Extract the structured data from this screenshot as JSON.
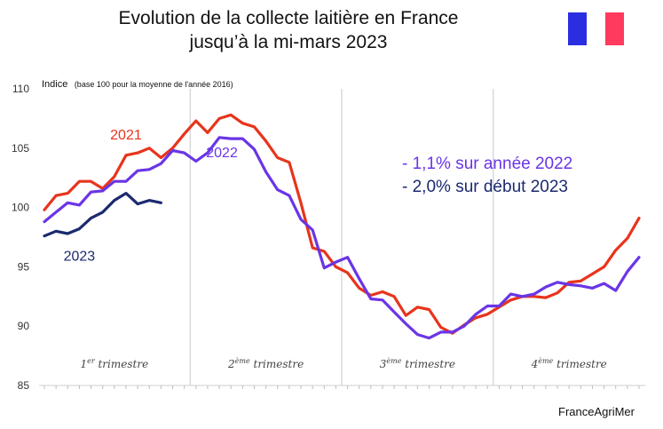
{
  "title_line1": "Evolution de la collecte laitière en France",
  "title_line2": "jusqu’à la mi-mars 2023",
  "source": "FranceAgriMer",
  "flag_colors": [
    "#2b2ee0",
    "#ffffff",
    "#ff3a5e"
  ],
  "chart_data": {
    "type": "line",
    "ylabel": "Indice",
    "ylabel_note": "(base 100 pour la moyenne de l'année 2016)",
    "ylim": [
      85,
      110
    ],
    "yticks": [
      85,
      90,
      95,
      100,
      105,
      110
    ],
    "x_unit": "week",
    "xlim": [
      1,
      52
    ],
    "quarters": [
      {
        "label": "1",
        "sup": "er",
        "rest": " trimestre"
      },
      {
        "label": "2",
        "sup": "ème",
        "rest": " trimestre"
      },
      {
        "label": "3",
        "sup": "ème",
        "rest": " trimestre"
      },
      {
        "label": "4",
        "sup": "ème",
        "rest": " trimestre"
      }
    ],
    "grid": "vertical separators between quarters",
    "series": [
      {
        "name": "2021",
        "color": "#e8341c",
        "x": [
          1,
          2,
          3,
          4,
          5,
          6,
          7,
          8,
          9,
          10,
          11,
          12,
          13,
          14,
          15,
          16,
          17,
          18,
          19,
          20,
          21,
          22,
          23,
          24,
          25,
          26,
          27,
          28,
          29,
          30,
          31,
          32,
          33,
          34,
          35,
          36,
          37,
          38,
          39,
          40,
          41,
          42,
          43,
          44,
          45,
          46,
          47,
          48,
          49,
          50,
          51,
          52
        ],
        "values": [
          99.8,
          101.0,
          101.2,
          102.2,
          102.2,
          101.6,
          102.6,
          104.4,
          104.6,
          105.0,
          104.2,
          105.0,
          106.2,
          107.3,
          106.3,
          107.5,
          107.8,
          107.1,
          106.8,
          105.6,
          104.2,
          103.8,
          100.4,
          96.6,
          96.3,
          95.0,
          94.5,
          93.2,
          92.6,
          92.9,
          92.5,
          90.9,
          91.6,
          91.4,
          89.9,
          89.4,
          90.1,
          90.7,
          91.0,
          91.6,
          92.2,
          92.5,
          92.5,
          92.4,
          92.8,
          93.7,
          93.8,
          94.4,
          95.0,
          96.4,
          97.4,
          99.1
        ]
      },
      {
        "name": "2022",
        "color": "#6a35e6",
        "x": [
          1,
          2,
          3,
          4,
          5,
          6,
          7,
          8,
          9,
          10,
          11,
          12,
          13,
          14,
          15,
          16,
          17,
          18,
          19,
          20,
          21,
          22,
          23,
          24,
          25,
          26,
          27,
          28,
          29,
          30,
          31,
          32,
          33,
          34,
          35,
          36,
          37,
          38,
          39,
          40,
          41,
          42,
          43,
          44,
          45,
          46,
          47,
          48,
          49,
          50,
          51,
          52
        ],
        "values": [
          98.8,
          99.6,
          100.4,
          100.2,
          101.3,
          101.4,
          102.2,
          102.2,
          103.1,
          103.2,
          103.7,
          104.8,
          104.6,
          103.9,
          104.6,
          105.9,
          105.8,
          105.8,
          104.9,
          103.0,
          101.5,
          101.0,
          99.0,
          98.1,
          94.9,
          95.4,
          95.8,
          94.0,
          92.3,
          92.2,
          91.2,
          90.2,
          89.3,
          89.0,
          89.5,
          89.5,
          90.0,
          91.0,
          91.7,
          91.7,
          92.7,
          92.5,
          92.7,
          93.3,
          93.7,
          93.5,
          93.4,
          93.2,
          93.6,
          93.0,
          94.6,
          95.8
        ]
      },
      {
        "name": "2023",
        "color": "#1a2a6e",
        "x": [
          1,
          2,
          3,
          4,
          5,
          6,
          7,
          8,
          9,
          10,
          11
        ],
        "values": [
          97.6,
          98.0,
          97.8,
          98.2,
          99.1,
          99.6,
          100.6,
          101.2,
          100.3,
          100.6,
          100.4
        ]
      }
    ],
    "annotations": [
      {
        "text": "- 1,1% sur année 2022",
        "color": "#6a35e6"
      },
      {
        "text": "- 2,0% sur début 2023",
        "color": "#1a2a6e"
      }
    ]
  }
}
